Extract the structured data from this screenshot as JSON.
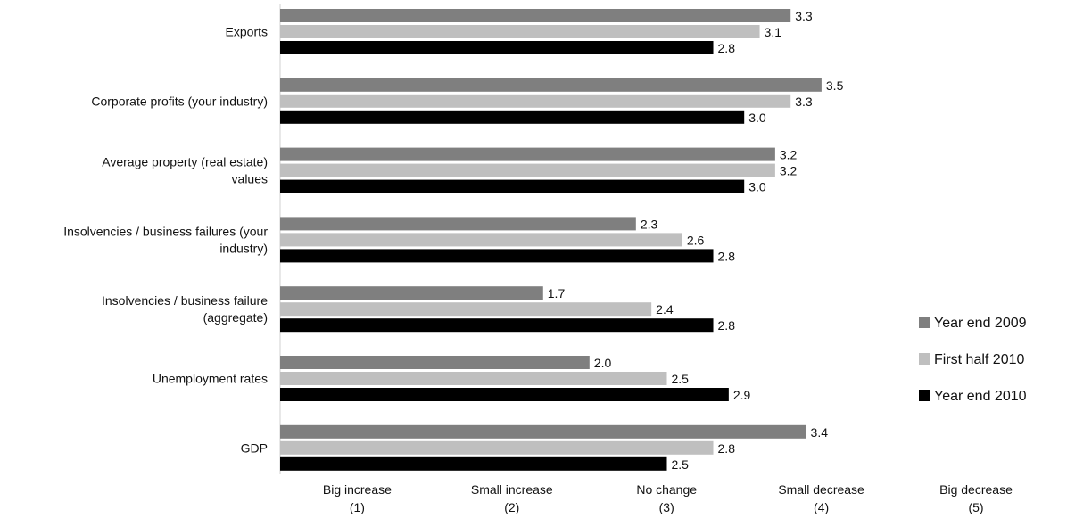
{
  "chart_data": {
    "type": "bar",
    "orientation": "horizontal",
    "categories": [
      [
        "Exports"
      ],
      [
        "Corporate profits (your industry)"
      ],
      [
        "Average property (real estate)",
        "values"
      ],
      [
        "Insolvencies / business failures (your",
        "industry)"
      ],
      [
        "Insolvencies / business failure",
        "(aggregate)"
      ],
      [
        "Unemployment rates"
      ],
      [
        "GDP"
      ]
    ],
    "series": [
      {
        "name": "Year end 2009",
        "color": "#7f7f7f",
        "values": [
          3.3,
          3.5,
          3.2,
          2.3,
          1.7,
          2.0,
          3.4
        ],
        "labels": [
          "3.3",
          "3.5",
          "3.2",
          "2.3",
          "1.7",
          "2.0",
          "3.4"
        ]
      },
      {
        "name": "First half 2010",
        "color": "#bfbfbf",
        "values": [
          3.1,
          3.3,
          3.2,
          2.6,
          2.4,
          2.5,
          2.8
        ],
        "labels": [
          "3.1",
          "3.3",
          "3.2",
          "2.6",
          "2.4",
          "2.5",
          "2.8"
        ]
      },
      {
        "name": "Year end 2010",
        "color": "#000000",
        "values": [
          2.8,
          3.0,
          3.0,
          2.8,
          2.8,
          2.9,
          2.5
        ],
        "labels": [
          "2.8",
          "3.0",
          "3.0",
          "2.8",
          "2.8",
          "2.9",
          "2.5"
        ]
      }
    ],
    "x_ticks": [
      {
        "value": 1,
        "label": [
          "Big increase",
          "(1)"
        ]
      },
      {
        "value": 2,
        "label": [
          "Small increase",
          "(2)"
        ]
      },
      {
        "value": 3,
        "label": [
          "No change",
          "(3)"
        ]
      },
      {
        "value": 4,
        "label": [
          "Small decrease",
          "(4)"
        ]
      },
      {
        "value": 5,
        "label": [
          "Big decrease",
          "(5)"
        ]
      }
    ],
    "xlim": [
      0,
      5
    ],
    "grid": false,
    "legend_position": "right"
  }
}
